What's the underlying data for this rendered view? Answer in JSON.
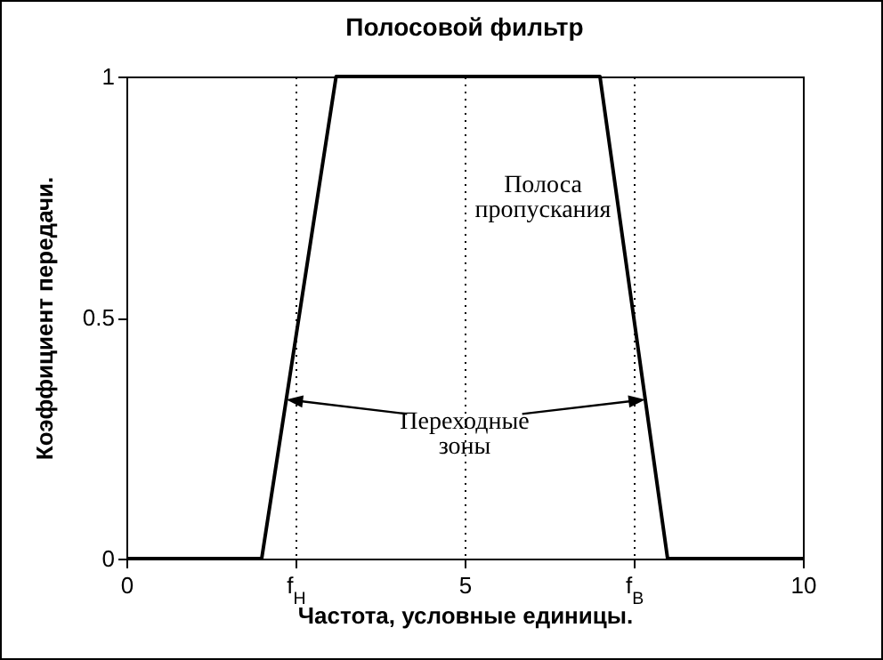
{
  "chart_data": {
    "type": "line",
    "title": "Полосовой фильтр",
    "xlabel": "Частота,  условные единицы.",
    "ylabel": "Коэффициент передачи.",
    "x": [
      0,
      2,
      3.1,
      7,
      8,
      10
    ],
    "series": [
      {
        "color": "#000000",
        "values": [
          0,
          0,
          1,
          1,
          0,
          0
        ]
      }
    ],
    "xlim": [
      0,
      10
    ],
    "ylim": [
      0,
      1
    ],
    "xticks": [
      0,
      {
        "value": 2.5,
        "label": "f$_{Н}$"
      },
      5,
      {
        "value": 7.5,
        "label": "f$_{В}$"
      },
      10
    ],
    "yticks": [
      0,
      0.5,
      1
    ],
    "grid": "x",
    "annotations": [
      "Полоса\nпропускания",
      "Переходные\nзоны"
    ]
  }
}
